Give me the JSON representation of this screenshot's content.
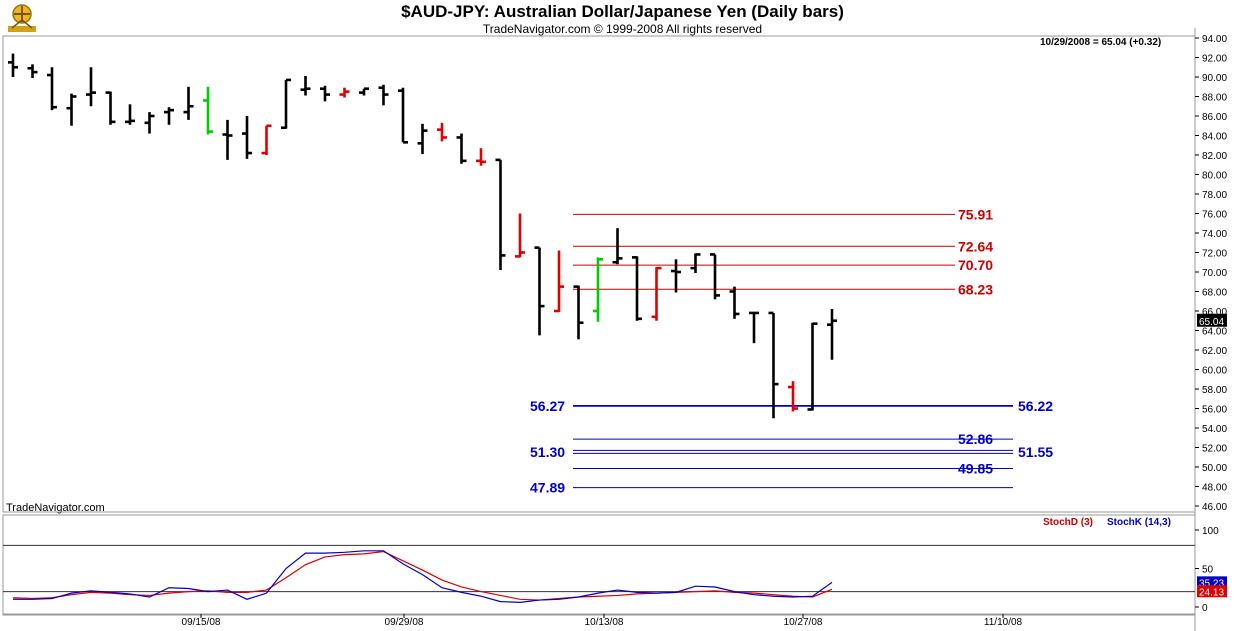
{
  "header": {
    "title": "$AUD-JPY:  Australian Dollar/Japanese Yen  (Daily bars)",
    "subtitle": "TradeNavigator.com © 1999-2008 All rights reserved",
    "readout": "10/29/2008 = 65.04 (+0.32)",
    "credit": "TradeNavigator.com"
  },
  "colors": {
    "bar_default": "#000000",
    "bar_down": "#e00000",
    "bar_up": "#00cc00",
    "resistance": "#cc0000",
    "support": "#0000cc",
    "stoch_d": "#e00000",
    "stoch_k": "#0000cc"
  },
  "chart_data": [
    {
      "type": "ohlc",
      "ylim": [
        46,
        94
      ],
      "yticks": [
        "94.00",
        "92.00",
        "90.00",
        "88.00",
        "86.00",
        "84.00",
        "82.00",
        "80.00",
        "78.00",
        "76.00",
        "74.00",
        "72.00",
        "70.00",
        "68.00",
        "66.00",
        "64.00",
        "62.00",
        "60.00",
        "58.00",
        "56.00",
        "54.00",
        "52.00",
        "50.00",
        "48.00",
        "46.00"
      ],
      "last_price_label": "65.04",
      "bars": [
        {
          "i": 0,
          "o": 91.5,
          "h": 92.4,
          "l": 90.0,
          "c": 91.0,
          "color": "k"
        },
        {
          "i": 1,
          "o": 90.9,
          "h": 91.3,
          "l": 89.9,
          "c": 90.5,
          "color": "k"
        },
        {
          "i": 2,
          "o": 90.2,
          "h": 91.0,
          "l": 86.6,
          "c": 86.9,
          "color": "k"
        },
        {
          "i": 3,
          "o": 86.8,
          "h": 88.3,
          "l": 85.0,
          "c": 88.0,
          "color": "k"
        },
        {
          "i": 4,
          "o": 88.2,
          "h": 91.0,
          "l": 87.0,
          "c": 88.4,
          "color": "k"
        },
        {
          "i": 5,
          "o": 88.4,
          "h": 88.5,
          "l": 85.1,
          "c": 85.4,
          "color": "k"
        },
        {
          "i": 6,
          "o": 85.4,
          "h": 87.2,
          "l": 85.1,
          "c": 85.5,
          "color": "k"
        },
        {
          "i": 7,
          "o": 85.3,
          "h": 86.4,
          "l": 84.2,
          "c": 86.0,
          "color": "k"
        },
        {
          "i": 8,
          "o": 86.4,
          "h": 86.9,
          "l": 85.1,
          "c": 86.6,
          "color": "k"
        },
        {
          "i": 9,
          "o": 86.4,
          "h": 89.0,
          "l": 85.6,
          "c": 87.0,
          "color": "k"
        },
        {
          "i": 10,
          "o": 87.6,
          "h": 89.0,
          "l": 84.1,
          "c": 84.4,
          "color": "g"
        },
        {
          "i": 11,
          "o": 84.1,
          "h": 85.6,
          "l": 81.5,
          "c": 84.0,
          "color": "k"
        },
        {
          "i": 12,
          "o": 84.2,
          "h": 86.0,
          "l": 81.6,
          "c": 82.2,
          "color": "k"
        },
        {
          "i": 13,
          "o": 82.2,
          "h": 85.0,
          "l": 82.0,
          "c": 85.0,
          "color": "r"
        },
        {
          "i": 14,
          "o": 84.8,
          "h": 89.7,
          "l": 84.7,
          "c": 89.7,
          "color": "k"
        },
        {
          "i": 15,
          "o": 88.7,
          "h": 90.1,
          "l": 88.1,
          "c": 88.8,
          "color": "k"
        },
        {
          "i": 16,
          "o": 88.8,
          "h": 89.1,
          "l": 87.5,
          "c": 88.2,
          "color": "k"
        },
        {
          "i": 17,
          "o": 88.2,
          "h": 88.9,
          "l": 87.9,
          "c": 88.5,
          "color": "r"
        },
        {
          "i": 18,
          "o": 88.4,
          "h": 88.8,
          "l": 88.1,
          "c": 88.8,
          "color": "k"
        },
        {
          "i": 19,
          "o": 88.9,
          "h": 89.2,
          "l": 87.1,
          "c": 88.2,
          "color": "k"
        },
        {
          "i": 20,
          "o": 88.6,
          "h": 88.9,
          "l": 83.3,
          "c": 83.3,
          "color": "k"
        },
        {
          "i": 21,
          "o": 83.2,
          "h": 85.2,
          "l": 82.1,
          "c": 84.5,
          "color": "k"
        },
        {
          "i": 22,
          "o": 84.6,
          "h": 85.3,
          "l": 83.4,
          "c": 83.8,
          "color": "r"
        },
        {
          "i": 23,
          "o": 83.8,
          "h": 84.2,
          "l": 81.1,
          "c": 81.4,
          "color": "k"
        },
        {
          "i": 24,
          "o": 81.4,
          "h": 82.7,
          "l": 80.9,
          "c": 81.3,
          "color": "r"
        },
        {
          "i": 25,
          "o": 81.5,
          "h": 81.5,
          "l": 70.2,
          "c": 71.7,
          "color": "k"
        },
        {
          "i": 26,
          "o": 71.6,
          "h": 76.0,
          "l": 71.5,
          "c": 72.0,
          "color": "r"
        },
        {
          "i": 27,
          "o": 72.5,
          "h": 72.5,
          "l": 63.5,
          "c": 66.5,
          "color": "k"
        },
        {
          "i": 28,
          "o": 66.0,
          "h": 72.2,
          "l": 65.9,
          "c": 68.5,
          "color": "r"
        },
        {
          "i": 29,
          "o": 68.5,
          "h": 68.6,
          "l": 63.1,
          "c": 64.8,
          "color": "k"
        },
        {
          "i": 30,
          "o": 66.0,
          "h": 71.5,
          "l": 64.9,
          "c": 71.3,
          "color": "g"
        },
        {
          "i": 31,
          "o": 71.0,
          "h": 74.5,
          "l": 70.8,
          "c": 71.4,
          "color": "k"
        },
        {
          "i": 32,
          "o": 71.5,
          "h": 71.6,
          "l": 65.0,
          "c": 65.2,
          "color": "k"
        },
        {
          "i": 33,
          "o": 65.4,
          "h": 70.5,
          "l": 65.0,
          "c": 70.4,
          "color": "r"
        },
        {
          "i": 34,
          "o": 70.1,
          "h": 71.3,
          "l": 67.9,
          "c": 70.0,
          "color": "k"
        },
        {
          "i": 35,
          "o": 70.4,
          "h": 71.9,
          "l": 69.9,
          "c": 71.8,
          "color": "k"
        },
        {
          "i": 36,
          "o": 71.8,
          "h": 71.8,
          "l": 67.2,
          "c": 67.6,
          "color": "k"
        },
        {
          "i": 37,
          "o": 68.0,
          "h": 68.5,
          "l": 65.2,
          "c": 65.7,
          "color": "k"
        },
        {
          "i": 38,
          "o": 65.8,
          "h": 65.9,
          "l": 62.7,
          "c": 65.8,
          "color": "k"
        },
        {
          "i": 39,
          "o": 65.8,
          "h": 65.8,
          "l": 55.0,
          "c": 58.5,
          "color": "k"
        },
        {
          "i": 40,
          "o": 58.2,
          "h": 58.8,
          "l": 55.7,
          "c": 56.0,
          "color": "r"
        },
        {
          "i": 41,
          "o": 55.9,
          "h": 64.8,
          "l": 55.8,
          "c": 64.7,
          "color": "k"
        },
        {
          "i": 42,
          "o": 64.6,
          "h": 66.2,
          "l": 61.0,
          "c": 65.0,
          "color": "k"
        }
      ],
      "levels": [
        {
          "value": 75.91,
          "label": "75.91",
          "group": "resistance"
        },
        {
          "value": 72.64,
          "label": "72.64",
          "group": "resistance"
        },
        {
          "value": 70.7,
          "label": "70.70",
          "group": "resistance"
        },
        {
          "value": 68.23,
          "label": "68.23",
          "group": "resistance"
        },
        {
          "value": 56.27,
          "label": "56.27",
          "label_right": "56.22",
          "group": "support",
          "thick": true
        },
        {
          "value": 52.86,
          "label": "52.86",
          "group": "support"
        },
        {
          "value": 51.55,
          "label": "51.30",
          "label_right": "51.55",
          "group": "support",
          "double": true
        },
        {
          "value": 49.85,
          "label": "49.85",
          "group": "support"
        },
        {
          "value": 47.89,
          "label": "47.89",
          "group": "support"
        }
      ]
    },
    {
      "type": "line",
      "ylim": [
        0,
        100
      ],
      "yticks": [
        "100",
        "50",
        "0"
      ],
      "ref_lines": [
        80,
        20
      ],
      "series": [
        {
          "name": "StochD (3)",
          "values": [
            12,
            11,
            12,
            16,
            19,
            18,
            16,
            15,
            18,
            20,
            21,
            19,
            19,
            22,
            38,
            55,
            65,
            68,
            69,
            72,
            60,
            48,
            35,
            26,
            20,
            15,
            10,
            9,
            11,
            13,
            14,
            15,
            17,
            18,
            19,
            20,
            21,
            19,
            18,
            16,
            14,
            13,
            23
          ]
        },
        {
          "name": "StochK (14,3)",
          "values": [
            10,
            10,
            11,
            18,
            21,
            19,
            17,
            13,
            25,
            24,
            20,
            22,
            10,
            18,
            50,
            70,
            70,
            71,
            73,
            73,
            56,
            42,
            25,
            19,
            14,
            7,
            6,
            9,
            10,
            13,
            18,
            22,
            19,
            18,
            19,
            27,
            26,
            20,
            16,
            14,
            13,
            14,
            32
          ]
        }
      ],
      "last_k_label": "35.23",
      "last_d_label": "24.13"
    }
  ],
  "axis": {
    "x_labels": [
      "09/15/08",
      "09/29/08",
      "10/13/08",
      "10/27/08",
      "11/10/08"
    ]
  },
  "indicator_legend": {
    "stochd": "StochD (3)",
    "stochk": "StochK (14,3)"
  }
}
